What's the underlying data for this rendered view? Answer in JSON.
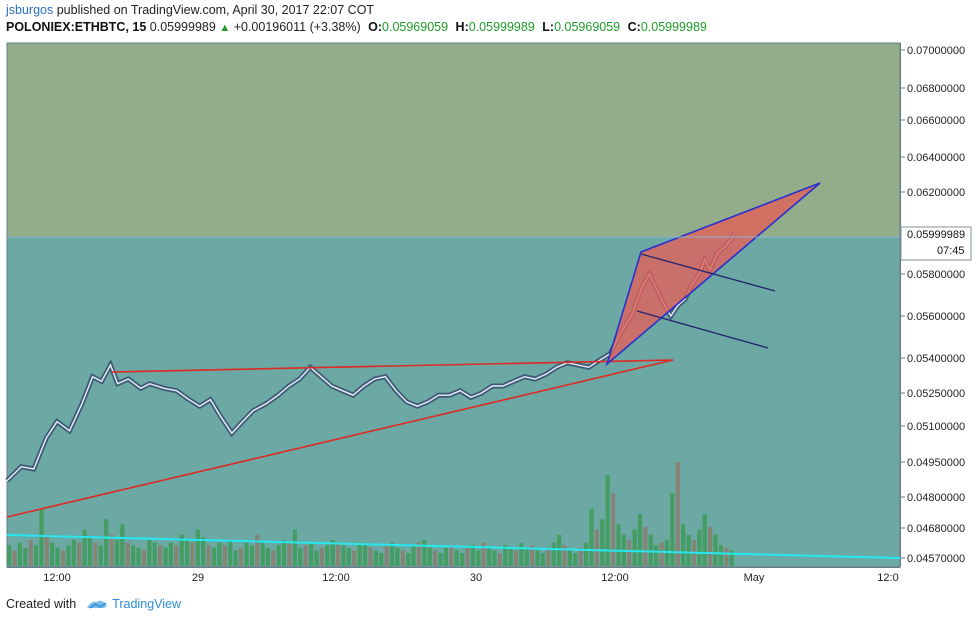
{
  "header": {
    "user": "jsburgos",
    "published": "published on TradingView.com, April 30, 2017 22:07 COT",
    "symbol": "POLONIEX:ETHBTC, 15",
    "price": "0.05999989",
    "change_arrow": "▲",
    "change": "+0.00196011 (+3.38%)",
    "o_label": "O:",
    "o_value": "0.05969059",
    "h_label": "H:",
    "h_value": "0.05999989",
    "l_label": "L:",
    "l_value": "0.05969059",
    "c_label": "C:",
    "c_value": "0.05999989"
  },
  "footer": {
    "created_with": "Created with",
    "brand": "TradingView"
  },
  "chart_data": {
    "type": "line",
    "y_ticks": [
      "0.07000000",
      "0.06800000",
      "0.06600000",
      "0.06400000",
      "0.06200000",
      "0.05800000",
      "0.05600000",
      "0.05400000",
      "0.05250000",
      "0.05100000",
      "0.04950000",
      "0.04800000",
      "0.04680000",
      "0.04570000"
    ],
    "x_ticks": [
      "12:00",
      "29",
      "12:00",
      "30",
      "12:00",
      "May",
      "12:0"
    ],
    "last_price_label": "0.05999989",
    "countdown_label": "07:45",
    "last_price": 0.05999989,
    "price_path": [
      [
        0,
        0.0487
      ],
      [
        8,
        0.0493
      ],
      [
        15,
        0.0492
      ],
      [
        22,
        0.0505
      ],
      [
        28,
        0.0512
      ],
      [
        35,
        0.0508
      ],
      [
        42,
        0.052
      ],
      [
        48,
        0.0532
      ],
      [
        53,
        0.053
      ],
      [
        58,
        0.0537
      ],
      [
        62,
        0.0529
      ],
      [
        68,
        0.0531
      ],
      [
        75,
        0.0527
      ],
      [
        80,
        0.0529
      ],
      [
        88,
        0.0527
      ],
      [
        95,
        0.0526
      ],
      [
        102,
        0.0522
      ],
      [
        108,
        0.0519
      ],
      [
        114,
        0.0522
      ],
      [
        120,
        0.0514
      ],
      [
        126,
        0.0507
      ],
      [
        132,
        0.0512
      ],
      [
        138,
        0.0517
      ],
      [
        145,
        0.052
      ],
      [
        152,
        0.0524
      ],
      [
        158,
        0.0528
      ],
      [
        164,
        0.0531
      ],
      [
        170,
        0.0536
      ],
      [
        176,
        0.0532
      ],
      [
        182,
        0.0528
      ],
      [
        188,
        0.0526
      ],
      [
        194,
        0.0524
      ],
      [
        200,
        0.0528
      ],
      [
        206,
        0.0531
      ],
      [
        212,
        0.0532
      ],
      [
        218,
        0.0526
      ],
      [
        224,
        0.0521
      ],
      [
        230,
        0.0519
      ],
      [
        236,
        0.0521
      ],
      [
        242,
        0.0524
      ],
      [
        248,
        0.0524
      ],
      [
        254,
        0.0526
      ],
      [
        260,
        0.0523
      ],
      [
        266,
        0.0525
      ],
      [
        272,
        0.0528
      ],
      [
        278,
        0.0528
      ],
      [
        284,
        0.053
      ],
      [
        290,
        0.0532
      ],
      [
        296,
        0.0531
      ],
      [
        302,
        0.0533
      ],
      [
        308,
        0.0536
      ],
      [
        314,
        0.0538
      ],
      [
        320,
        0.0537
      ],
      [
        326,
        0.0536
      ],
      [
        332,
        0.0539
      ],
      [
        338,
        0.0542
      ],
      [
        344,
        0.0552
      ],
      [
        350,
        0.056
      ],
      [
        356,
        0.0574
      ],
      [
        360,
        0.058
      ],
      [
        364,
        0.0573
      ],
      [
        368,
        0.0566
      ],
      [
        372,
        0.056
      ],
      [
        376,
        0.0565
      ],
      [
        380,
        0.0568
      ],
      [
        384,
        0.0575
      ],
      [
        388,
        0.058
      ],
      [
        391,
        0.0587
      ],
      [
        394,
        0.0582
      ],
      [
        398,
        0.059
      ],
      [
        402,
        0.0593
      ],
      [
        406,
        0.0597
      ],
      [
        408,
        0.05999989
      ]
    ],
    "volume": [
      8,
      6,
      9,
      7,
      10,
      8,
      22,
      12,
      9,
      7,
      6,
      8,
      10,
      9,
      14,
      11,
      9,
      8,
      18,
      12,
      10,
      16,
      9,
      8,
      7,
      6,
      10,
      9,
      8,
      7,
      9,
      8,
      12,
      10,
      9,
      14,
      11,
      8,
      7,
      9,
      8,
      10,
      6,
      7,
      9,
      8,
      12,
      9,
      7,
      6,
      8,
      10,
      9,
      14,
      7,
      8,
      9,
      6,
      7,
      8,
      10,
      9,
      8,
      7,
      6,
      9,
      8,
      7,
      6,
      5,
      8,
      9,
      7,
      6,
      5,
      8,
      9,
      10,
      7,
      6,
      5,
      7,
      8,
      6,
      5,
      7,
      8,
      6,
      9,
      7,
      6,
      5,
      8,
      7,
      6,
      9,
      7,
      8,
      6,
      5,
      7,
      9,
      12,
      8,
      6,
      5,
      7,
      9,
      22,
      14,
      18,
      35,
      28,
      16,
      12,
      10,
      14,
      20,
      15,
      12,
      8,
      9,
      10,
      28,
      40,
      16,
      12,
      10,
      14,
      20,
      15,
      12,
      8,
      7,
      6
    ]
  }
}
